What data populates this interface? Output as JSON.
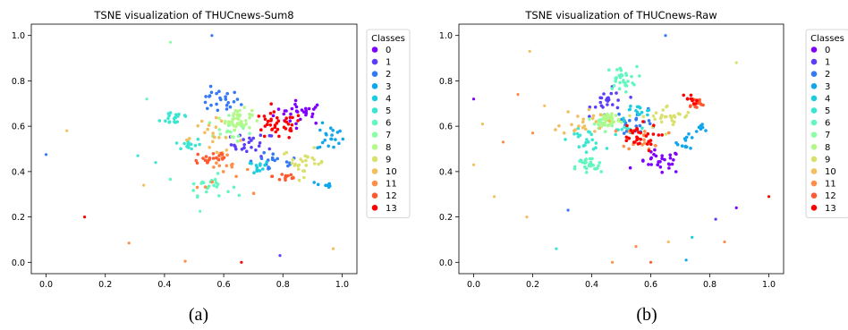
{
  "chart_data": [
    {
      "type": "scatter",
      "title": "TSNE visualization of THUCnews-Sum8",
      "caption": "(a)",
      "xlim": [
        -0.05,
        1.05
      ],
      "ylim": [
        -0.05,
        1.05
      ],
      "xticks": [
        "0.0",
        "0.2",
        "0.4",
        "0.6",
        "0.8",
        "1.0"
      ],
      "yticks": [
        "0.0",
        "0.2",
        "0.4",
        "0.6",
        "0.8",
        "1.0"
      ],
      "grid": false,
      "legend": {
        "title": "Classes",
        "placement": "right",
        "labels": [
          "0",
          "1",
          "2",
          "3",
          "4",
          "5",
          "6",
          "7",
          "8",
          "9",
          "10",
          "11",
          "12",
          "13"
        ]
      },
      "clusters": [
        {
          "class": 0,
          "cx": 0.86,
          "cy": 0.66,
          "rx": 0.06,
          "ry": 0.035,
          "n": 30
        },
        {
          "class": 1,
          "cx": 0.7,
          "cy": 0.52,
          "rx": 0.05,
          "ry": 0.035,
          "n": 25
        },
        {
          "class": 2,
          "cx": 0.58,
          "cy": 0.71,
          "rx": 0.05,
          "ry": 0.035,
          "n": 25
        },
        {
          "class": 2,
          "cx": 0.77,
          "cy": 0.44,
          "rx": 0.06,
          "ry": 0.03,
          "n": 18
        },
        {
          "class": 3,
          "cx": 0.96,
          "cy": 0.55,
          "rx": 0.03,
          "ry": 0.04,
          "n": 20
        },
        {
          "class": 3,
          "cx": 0.94,
          "cy": 0.34,
          "rx": 0.02,
          "ry": 0.015,
          "n": 8
        },
        {
          "class": 4,
          "cx": 0.7,
          "cy": 0.42,
          "rx": 0.04,
          "ry": 0.02,
          "n": 14
        },
        {
          "class": 5,
          "cx": 0.44,
          "cy": 0.64,
          "rx": 0.035,
          "ry": 0.025,
          "n": 20
        },
        {
          "class": 5,
          "cx": 0.48,
          "cy": 0.52,
          "rx": 0.03,
          "ry": 0.02,
          "n": 15
        },
        {
          "class": 6,
          "cx": 0.55,
          "cy": 0.34,
          "rx": 0.05,
          "ry": 0.03,
          "n": 25
        },
        {
          "class": 7,
          "cx": 0.62,
          "cy": 0.58,
          "rx": 0.05,
          "ry": 0.04,
          "n": 18
        },
        {
          "class": 8,
          "cx": 0.65,
          "cy": 0.63,
          "rx": 0.03,
          "ry": 0.03,
          "n": 45
        },
        {
          "class": 9,
          "cx": 0.87,
          "cy": 0.44,
          "rx": 0.05,
          "ry": 0.04,
          "n": 28
        },
        {
          "class": 10,
          "cx": 0.56,
          "cy": 0.55,
          "rx": 0.07,
          "ry": 0.05,
          "n": 22
        },
        {
          "class": 11,
          "cx": 0.6,
          "cy": 0.4,
          "rx": 0.06,
          "ry": 0.05,
          "n": 18
        },
        {
          "class": 12,
          "cx": 0.56,
          "cy": 0.46,
          "rx": 0.045,
          "ry": 0.025,
          "n": 22
        },
        {
          "class": 12,
          "cx": 0.81,
          "cy": 0.38,
          "rx": 0.03,
          "ry": 0.02,
          "n": 12
        },
        {
          "class": 13,
          "cx": 0.78,
          "cy": 0.6,
          "rx": 0.06,
          "ry": 0.04,
          "n": 40
        }
      ],
      "outliers": [
        [
          0.0,
          0.475,
          2
        ],
        [
          0.07,
          0.58,
          10
        ],
        [
          0.13,
          0.2,
          13
        ],
        [
          0.28,
          0.085,
          11
        ],
        [
          0.31,
          0.47,
          5
        ],
        [
          0.33,
          0.34,
          10
        ],
        [
          0.34,
          0.72,
          6
        ],
        [
          0.37,
          0.44,
          5
        ],
        [
          0.42,
          0.97,
          7
        ],
        [
          0.47,
          0.005,
          11
        ],
        [
          0.52,
          0.225,
          6
        ],
        [
          0.56,
          1.0,
          2
        ],
        [
          0.66,
          0.0,
          13
        ],
        [
          0.79,
          0.03,
          1
        ],
        [
          0.97,
          0.06,
          10
        ]
      ]
    },
    {
      "type": "scatter",
      "title": "TSNE visualization of THUCnews-Raw",
      "caption": "(b)",
      "xlim": [
        -0.05,
        1.05
      ],
      "ylim": [
        -0.05,
        1.05
      ],
      "xticks": [
        "0.0",
        "0.2",
        "0.4",
        "0.6",
        "0.8",
        "1.0"
      ],
      "yticks": [
        "0.0",
        "0.2",
        "0.4",
        "0.6",
        "0.8",
        "1.0"
      ],
      "grid": false,
      "legend": {
        "title": "Classes",
        "placement": "right",
        "labels": [
          "0",
          "1",
          "2",
          "3",
          "4",
          "5",
          "6",
          "7",
          "8",
          "9",
          "10",
          "11",
          "12",
          "13"
        ]
      },
      "clusters": [
        {
          "class": 0,
          "cx": 0.63,
          "cy": 0.44,
          "rx": 0.05,
          "ry": 0.035,
          "n": 30
        },
        {
          "class": 1,
          "cx": 0.46,
          "cy": 0.71,
          "rx": 0.04,
          "ry": 0.035,
          "n": 22
        },
        {
          "class": 2,
          "cx": 0.55,
          "cy": 0.62,
          "rx": 0.05,
          "ry": 0.04,
          "n": 22
        },
        {
          "class": 3,
          "cx": 0.72,
          "cy": 0.53,
          "rx": 0.02,
          "ry": 0.02,
          "n": 12
        },
        {
          "class": 3,
          "cx": 0.78,
          "cy": 0.6,
          "rx": 0.02,
          "ry": 0.015,
          "n": 8
        },
        {
          "class": 4,
          "cx": 0.55,
          "cy": 0.66,
          "rx": 0.04,
          "ry": 0.025,
          "n": 16
        },
        {
          "class": 5,
          "cx": 0.38,
          "cy": 0.54,
          "rx": 0.04,
          "ry": 0.03,
          "n": 22
        },
        {
          "class": 5,
          "cx": 0.5,
          "cy": 0.58,
          "rx": 0.03,
          "ry": 0.02,
          "n": 10
        },
        {
          "class": 6,
          "cx": 0.5,
          "cy": 0.81,
          "rx": 0.035,
          "ry": 0.035,
          "n": 30
        },
        {
          "class": 6,
          "cx": 0.39,
          "cy": 0.42,
          "rx": 0.03,
          "ry": 0.03,
          "n": 25
        },
        {
          "class": 7,
          "cx": 0.43,
          "cy": 0.61,
          "rx": 0.03,
          "ry": 0.025,
          "n": 15
        },
        {
          "class": 8,
          "cx": 0.46,
          "cy": 0.63,
          "rx": 0.025,
          "ry": 0.025,
          "n": 40
        },
        {
          "class": 9,
          "cx": 0.66,
          "cy": 0.64,
          "rx": 0.06,
          "ry": 0.035,
          "n": 30
        },
        {
          "class": 10,
          "cx": 0.37,
          "cy": 0.62,
          "rx": 0.05,
          "ry": 0.04,
          "n": 22
        },
        {
          "class": 11,
          "cx": 0.58,
          "cy": 0.55,
          "rx": 0.05,
          "ry": 0.035,
          "n": 18
        },
        {
          "class": 12,
          "cx": 0.75,
          "cy": 0.7,
          "rx": 0.02,
          "ry": 0.02,
          "n": 16
        },
        {
          "class": 13,
          "cx": 0.55,
          "cy": 0.55,
          "rx": 0.05,
          "ry": 0.04,
          "n": 32
        },
        {
          "class": 13,
          "cx": 0.73,
          "cy": 0.72,
          "rx": 0.02,
          "ry": 0.015,
          "n": 10
        }
      ],
      "outliers": [
        [
          0.0,
          0.72,
          0
        ],
        [
          0.0,
          0.43,
          10
        ],
        [
          0.03,
          0.61,
          10
        ],
        [
          0.07,
          0.29,
          10
        ],
        [
          0.1,
          0.53,
          11
        ],
        [
          0.15,
          0.74,
          11
        ],
        [
          0.18,
          0.2,
          10
        ],
        [
          0.19,
          0.93,
          10
        ],
        [
          0.2,
          0.57,
          11
        ],
        [
          0.24,
          0.69,
          10
        ],
        [
          0.28,
          0.06,
          5
        ],
        [
          0.32,
          0.23,
          2
        ],
        [
          0.47,
          0.0,
          11
        ],
        [
          0.55,
          0.07,
          11
        ],
        [
          0.6,
          0.0,
          12
        ],
        [
          0.65,
          1.0,
          2
        ],
        [
          0.72,
          0.01,
          3
        ],
        [
          0.74,
          0.11,
          4
        ],
        [
          0.82,
          0.19,
          1
        ],
        [
          0.85,
          0.09,
          11
        ],
        [
          0.89,
          0.24,
          0
        ],
        [
          0.89,
          0.88,
          9
        ],
        [
          1.0,
          0.29,
          13
        ],
        [
          0.66,
          0.09,
          10
        ]
      ]
    }
  ],
  "colors": [
    "#7f00ff",
    "#5b3df9",
    "#3379f5",
    "#0fa6ec",
    "#1ccde0",
    "#3ae6d1",
    "#62f7bf",
    "#8cfea4",
    "#b3f989",
    "#d9e06b",
    "#f2bf5f",
    "#ff8f48",
    "#ff5a31",
    "#ff0000"
  ]
}
